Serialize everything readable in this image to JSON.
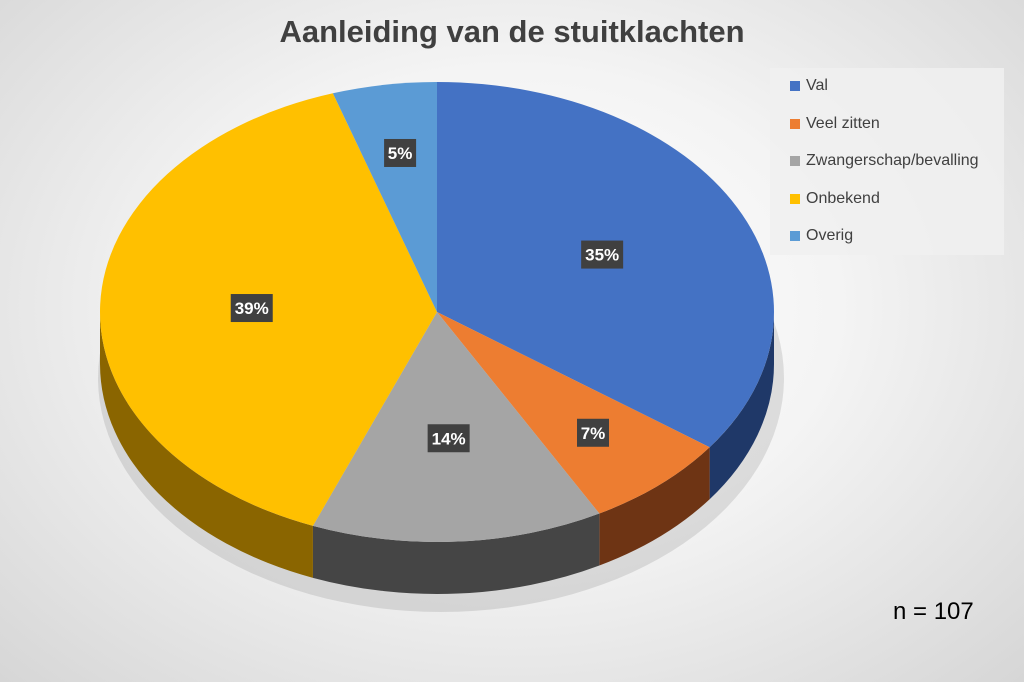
{
  "chart_data": {
    "type": "pie",
    "title": "Aanleiding van de stuitklachten",
    "categories": [
      "Val",
      "Veel zitten",
      "Zwangerschap/bevalling",
      "Onbekend",
      "Overig"
    ],
    "values": [
      35,
      7,
      14,
      39,
      5
    ],
    "labels": [
      "35%",
      "7%",
      "14%",
      "39%",
      "5%"
    ],
    "colors": [
      "#4472c4",
      "#ed7d31",
      "#a5a5a5",
      "#ffc000",
      "#5b9bd5"
    ],
    "side_colors": [
      "#1f3868",
      "#6e3414",
      "#454545",
      "#8a6500",
      "#2b5a8a"
    ],
    "legend_position": "top-right",
    "annotation": "n = 107"
  }
}
